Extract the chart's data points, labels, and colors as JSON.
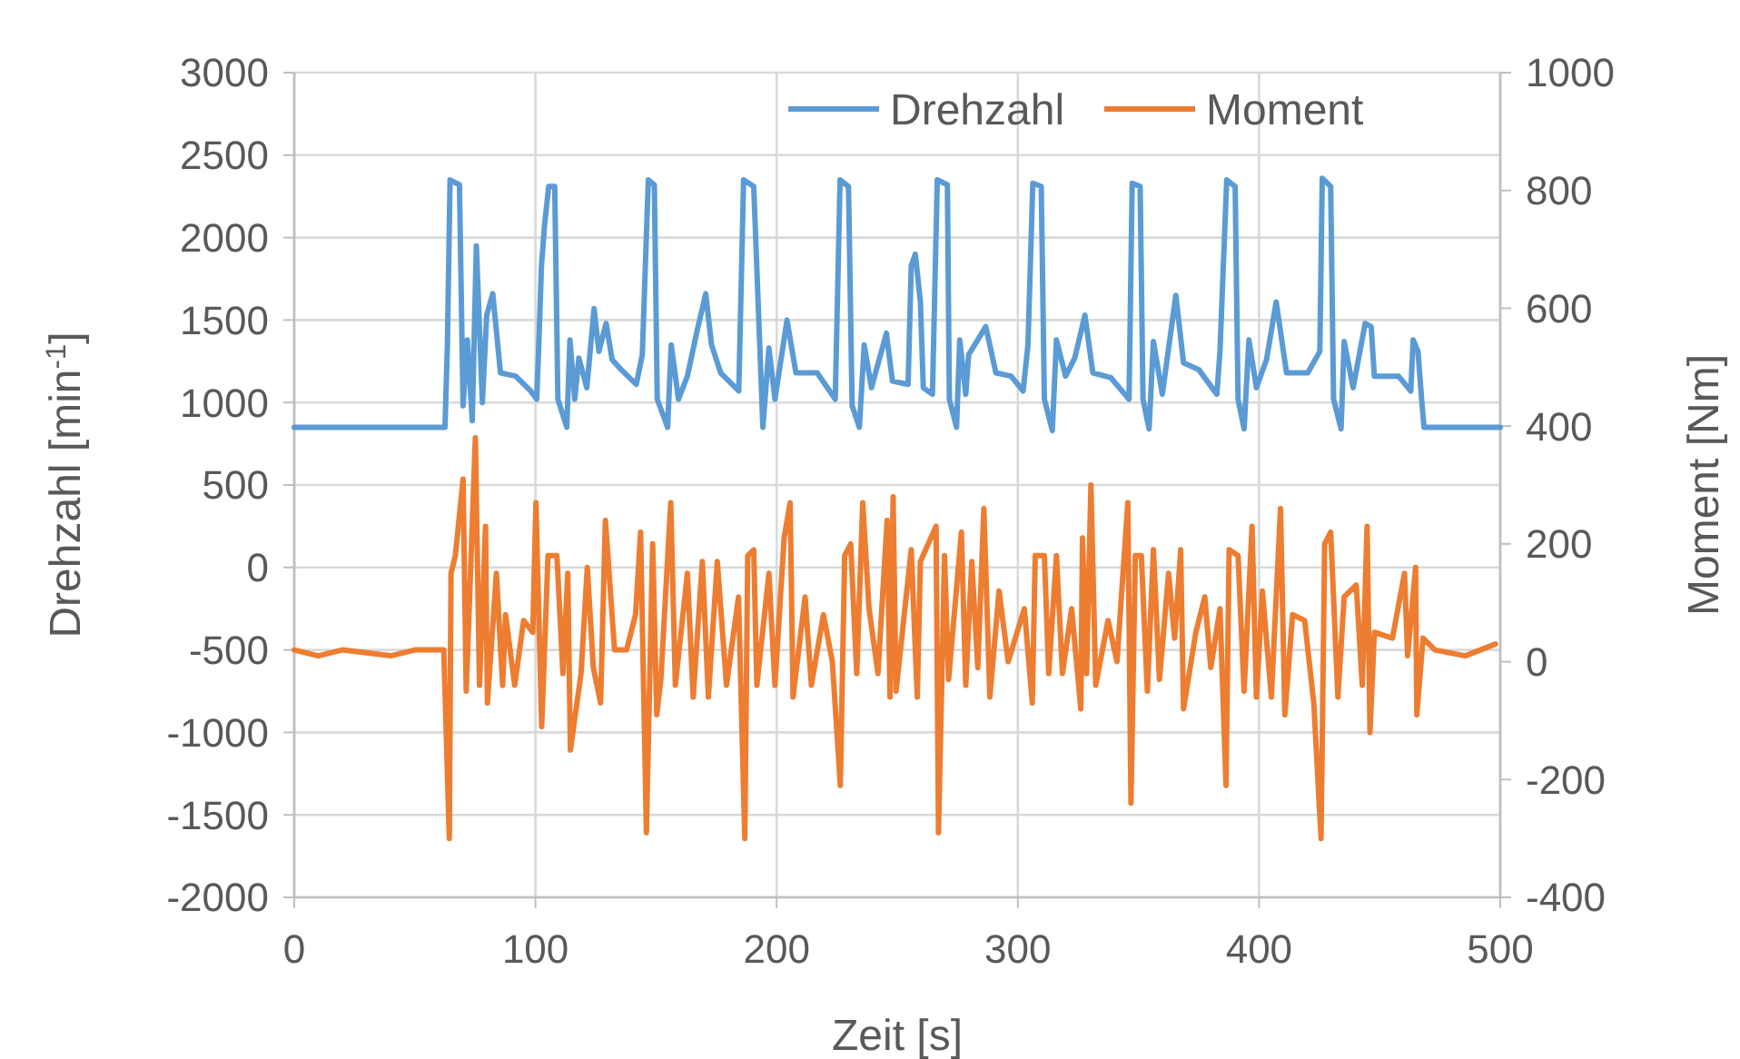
{
  "chart_data": {
    "type": "line",
    "xlabel": "Zeit [s]",
    "ylabel": "Drehzahl [min$^{-1}$]",
    "y2label": "Moment [Nm]",
    "xlim": [
      0,
      500
    ],
    "xticks": [
      0,
      100,
      200,
      300,
      400,
      500
    ],
    "ylim": [
      -2000,
      3000
    ],
    "yticks": [
      -2000,
      -1500,
      -1000,
      -500,
      0,
      500,
      1000,
      1500,
      2000,
      2500,
      3000
    ],
    "y2lim": [
      -400,
      1000
    ],
    "y2ticks": [
      -400,
      -200,
      0,
      200,
      400,
      600,
      800,
      1000
    ],
    "grid": true,
    "legend": "top right",
    "line_style": "solid",
    "marker": "none",
    "series": [
      {
        "name": "Drehzahl",
        "color": "#5b9bd5",
        "x": [
          0,
          62.5,
          63.5,
          64.6,
          68.5,
          70,
          71.8,
          73.8,
          75.5,
          78,
          79.8,
          82.3,
          85.5,
          91.8,
          98,
          100.5,
          101.3,
          102.5,
          103.8,
          105.5,
          108,
          109.3,
          113,
          114.3,
          116.3,
          118,
          121.3,
          124.3,
          126.3,
          129.3,
          131.8,
          135.5,
          141.8,
          144.3,
          146.8,
          149.3,
          150.5,
          154.8,
          156.3,
          159.3,
          163,
          166.8,
          170.6,
          173,
          176.8,
          184.3,
          186.3,
          190.5,
          194.3,
          196.8,
          199.3,
          204.3,
          208,
          216.8,
          224.3,
          226.3,
          229.8,
          231.3,
          234.3,
          236.3,
          239.3,
          245.5,
          248,
          254.5,
          255.8,
          257.5,
          259.6,
          260.8,
          264.6,
          266.6,
          270.8,
          271.6,
          274.6,
          275.9,
          278.4,
          279.6,
          283.4,
          286.7,
          290.9,
          297.2,
          302.2,
          304.2,
          306.2,
          309.7,
          311,
          314.3,
          316,
          319.8,
          323.6,
          327.8,
          331.1,
          338.6,
          346.1,
          347.4,
          350.7,
          351.9,
          354.4,
          356.2,
          359.9,
          365.5,
          368.7,
          375,
          382.5,
          383.8,
          386.6,
          390.1,
          391.3,
          393.8,
          395.8,
          398.9,
          403.1,
          407.1,
          411.4,
          420.2,
          425.2,
          426.2,
          429.7,
          430.9,
          434,
          435.3,
          439,
          444,
          446.5,
          447.8,
          457.8,
          462.9,
          463.9,
          465.9,
          467.4,
          468.4,
          500
        ],
        "values": [
          850,
          850,
          1350,
          2350,
          2320,
          980,
          1380,
          890,
          1950,
          1000,
          1530,
          1660,
          1180,
          1160,
          1070,
          1020,
          1310,
          1830,
          2080,
          2310,
          2310,
          1020,
          850,
          1380,
          1020,
          1270,
          1090,
          1570,
          1310,
          1480,
          1260,
          1200,
          1110,
          1290,
          2350,
          2320,
          1020,
          850,
          1350,
          1020,
          1160,
          1420,
          1660,
          1350,
          1180,
          1070,
          2350,
          2310,
          850,
          1330,
          1020,
          1500,
          1180,
          1180,
          1020,
          2350,
          2310,
          980,
          850,
          1350,
          1090,
          1420,
          1130,
          1110,
          1830,
          1900,
          1610,
          1090,
          1050,
          2350,
          2320,
          1020,
          850,
          1380,
          1050,
          1290,
          1380,
          1460,
          1180,
          1160,
          1070,
          1350,
          2330,
          2310,
          1020,
          830,
          1380,
          1160,
          1270,
          1530,
          1180,
          1150,
          1020,
          2330,
          2310,
          1020,
          840,
          1370,
          1050,
          1650,
          1240,
          1200,
          1050,
          1310,
          2350,
          2310,
          1020,
          840,
          1380,
          1090,
          1260,
          1610,
          1180,
          1180,
          1310,
          2360,
          2310,
          1020,
          840,
          1370,
          1090,
          1480,
          1460,
          1160,
          1160,
          1070,
          1380,
          1310,
          1020,
          850,
          850
        ]
      },
      {
        "name": "Moment",
        "color": "#ed7d31",
        "axis": "y2",
        "x": [
          0,
          10,
          20,
          30,
          40,
          50,
          62,
          64.3,
          65,
          66.8,
          70,
          71.3,
          75.1,
          76.8,
          79.3,
          80.1,
          83.8,
          86.4,
          87.6,
          91.4,
          95.1,
          98.9,
          100.2,
          102.6,
          105.2,
          108.9,
          111.4,
          113.4,
          114.5,
          118.9,
          121.5,
          124,
          127,
          129,
          132.8,
          137.8,
          141.5,
          143.6,
          146,
          148.6,
          150.3,
          152,
          156.1,
          158,
          163,
          165.4,
          169.2,
          171.7,
          175.4,
          179.2,
          184.2,
          186.8,
          188,
          190.5,
          191.8,
          196.8,
          199.3,
          203.1,
          205.6,
          206.8,
          211.8,
          214.4,
          219.4,
          223.1,
          226.4,
          228.2,
          230.7,
          233.2,
          235.7,
          238.3,
          242,
          245.8,
          247,
          248.3,
          249.5,
          255.8,
          258.3,
          259.6,
          266.1,
          267.1,
          269.6,
          271.3,
          276.6,
          278.4,
          280.9,
          283.4,
          285.9,
          288.4,
          292.2,
          296,
          299.7,
          302.7,
          306,
          307.2,
          311,
          312.8,
          316,
          318.5,
          322.3,
          326.1,
          326.8,
          328.5,
          330.3,
          332.3,
          337.4,
          341.1,
          345.6,
          346.9,
          348.7,
          351.2,
          353.7,
          356.2,
          358.7,
          362.5,
          365,
          367.5,
          368.7,
          373.8,
          377.5,
          380,
          383.8,
          386.3,
          387.6,
          391.3,
          393.8,
          397.1,
          398.9,
          401.4,
          405.1,
          408.9,
          410.7,
          413.9,
          418.9,
          422.7,
          425.7,
          427.2,
          429.7,
          432.7,
          435.3,
          440.3,
          442.8,
          444.8,
          446,
          447.8,
          455.3,
          460.3,
          461.6,
          464.9,
          465.4,
          468,
          472.9,
          485.5,
          498
        ],
        "values": [
          20,
          10,
          20,
          15,
          10,
          20,
          20,
          -300,
          150,
          180,
          310,
          -50,
          380,
          -40,
          230,
          -70,
          150,
          -40,
          80,
          -40,
          70,
          50,
          270,
          -110,
          180,
          180,
          -20,
          150,
          -150,
          -20,
          160,
          -10,
          -70,
          240,
          20,
          20,
          80,
          220,
          -290,
          200,
          -90,
          -30,
          270,
          -40,
          150,
          -60,
          170,
          -60,
          170,
          -40,
          110,
          -300,
          180,
          190,
          -40,
          150,
          -40,
          210,
          270,
          -60,
          110,
          -40,
          80,
          0,
          -210,
          180,
          200,
          -20,
          270,
          90,
          -20,
          240,
          -60,
          280,
          -50,
          190,
          -60,
          170,
          230,
          -290,
          180,
          -30,
          220,
          -40,
          170,
          -10,
          260,
          -60,
          120,
          0,
          50,
          90,
          -70,
          180,
          180,
          -20,
          180,
          -20,
          90,
          -80,
          210,
          -20,
          300,
          -40,
          70,
          0,
          270,
          -240,
          180,
          180,
          -50,
          190,
          -30,
          150,
          40,
          190,
          -80,
          50,
          110,
          -10,
          90,
          -210,
          190,
          180,
          -50,
          230,
          -60,
          120,
          -60,
          260,
          -90,
          80,
          70,
          -70,
          -300,
          200,
          220,
          -60,
          110,
          130,
          -40,
          230,
          -120,
          50,
          40,
          150,
          10,
          160,
          -90,
          40,
          20,
          10,
          30
        ]
      }
    ]
  }
}
